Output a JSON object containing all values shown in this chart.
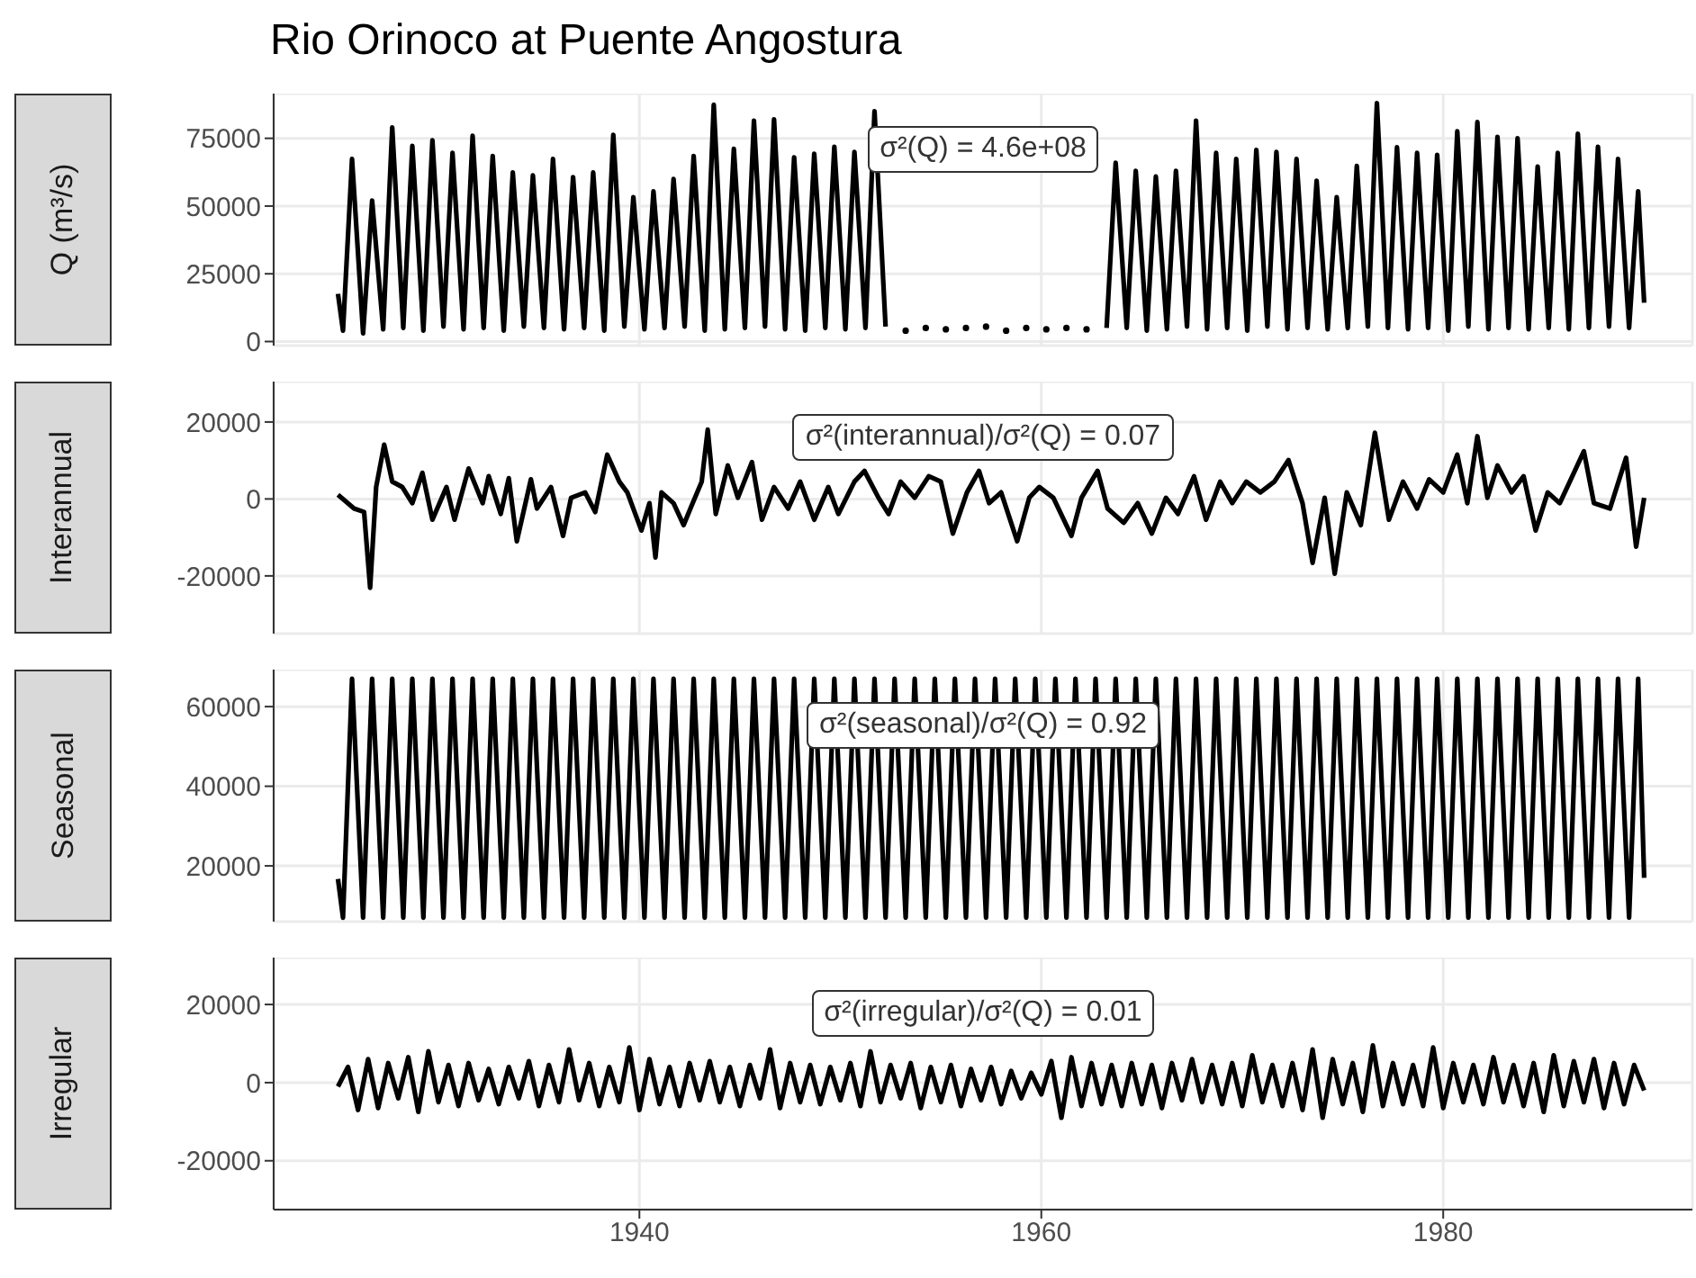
{
  "chart_data": [
    {
      "type": "line",
      "title": "Rio Orinoco at Puente Angostura",
      "ylabel": "Q (m³/s)",
      "annotations": [
        "σ²(Q) = 4.6e+08"
      ],
      "color": "#000000",
      "marker": "none",
      "grid": true,
      "tick_labels": "y",
      "xlim": [
        1921.8,
        1992.4
      ],
      "xticks": [
        1940,
        1960,
        1980
      ],
      "ylim": [
        -1500,
        91500
      ],
      "yticks": [
        0,
        25000,
        50000,
        75000
      ],
      "x": [
        1925,
        1925.25,
        1925.7,
        1926.25,
        1926.7,
        1927.25,
        1927.7,
        1928.25,
        1928.7,
        1929.25,
        1929.7,
        1930.25,
        1930.7,
        1931.25,
        1931.7,
        1932.25,
        1932.7,
        1933.25,
        1933.7,
        1934.25,
        1934.7,
        1935.25,
        1935.7,
        1936.25,
        1936.7,
        1937.25,
        1937.7,
        1938.25,
        1938.7,
        1939.25,
        1939.7,
        1940.25,
        1940.7,
        1941.25,
        1941.7,
        1942.25,
        1942.7,
        1943.25,
        1943.7,
        1944.25,
        1944.7,
        1945.25,
        1945.7,
        1946.25,
        1946.7,
        1947.25,
        1947.7,
        1948.25,
        1948.7,
        1949.25,
        1949.7,
        1950.25,
        1950.7,
        1951.25,
        1951.7,
        1952.25,
        1952.7,
        1953.25,
        1953.7,
        1954.25,
        1954.7,
        1955.25,
        1955.7,
        1956.25,
        1956.7,
        1957.25,
        1957.7,
        1958.25,
        1958.7,
        1959.25,
        1959.7,
        1960.25,
        1960.7,
        1961.25,
        1961.7,
        1962.25,
        1962.7,
        1963.25,
        1963.7,
        1964.25,
        1964.7,
        1965.25,
        1965.7,
        1966.25,
        1966.7,
        1967.25,
        1967.7,
        1968.25,
        1968.7,
        1969.25,
        1969.7,
        1970.25,
        1970.7,
        1971.25,
        1971.7,
        1972.25,
        1972.7,
        1973.25,
        1973.7,
        1974.25,
        1974.7,
        1975.25,
        1975.7,
        1976.25,
        1976.7,
        1977.25,
        1977.7,
        1978.25,
        1978.7,
        1979.25,
        1979.7,
        1980.25,
        1980.7,
        1981.25,
        1981.7,
        1982.25,
        1982.7,
        1983.25,
        1983.7,
        1984.25,
        1984.7,
        1985.25,
        1985.7,
        1986.25,
        1986.7,
        1987.25,
        1987.7,
        1988.25,
        1988.7,
        1989.25,
        1989.7,
        1990
      ],
      "values": [
        17600,
        4000,
        67400,
        3000,
        52000,
        4500,
        79000,
        5000,
        72200,
        4000,
        74300,
        5500,
        69600,
        4500,
        75900,
        5000,
        68500,
        4000,
        62400,
        5500,
        61300,
        5000,
        67400,
        4500,
        60700,
        5000,
        62400,
        4000,
        76300,
        5500,
        53300,
        4500,
        55400,
        5000,
        60000,
        5500,
        68500,
        4000,
        87400,
        4500,
        71100,
        5000,
        81500,
        5500,
        82000,
        4500,
        68000,
        4000,
        69300,
        5000,
        71900,
        4500,
        70000,
        5000,
        85000,
        5500,
        null,
        4000,
        null,
        5000,
        null,
        4500,
        null,
        5000,
        null,
        5500,
        null,
        4000,
        null,
        5000,
        null,
        4500,
        null,
        5000,
        null,
        4500,
        null,
        5000,
        66000,
        5000,
        63000,
        4000,
        60900,
        4500,
        63000,
        5500,
        81500,
        4500,
        69600,
        5000,
        67400,
        4000,
        70700,
        5500,
        70000,
        4500,
        67400,
        5000,
        59300,
        4500,
        53300,
        5000,
        64800,
        5500,
        88000,
        5000,
        71700,
        4500,
        69600,
        5000,
        68900,
        4000,
        77600,
        5500,
        81000,
        4500,
        75500,
        5000,
        75000,
        4500,
        64600,
        5000,
        69600,
        4500,
        76700,
        5000,
        71900,
        5500,
        67400,
        5000,
        55400,
        14300
      ]
    },
    {
      "type": "line",
      "ylabel": "Interannual",
      "annotations": [
        "σ²(interannual)/σ²(Q) = 0.07"
      ],
      "color": "#000000",
      "marker": "none",
      "grid": true,
      "tick_labels": "y",
      "xlim": [
        1921.8,
        1992.4
      ],
      "xticks": [
        1940,
        1960,
        1980
      ],
      "ylim": [
        -35000,
        30500
      ],
      "yticks": [
        -20000,
        0,
        20000
      ],
      "x": [
        1925.0,
        1925.8,
        1926.3,
        1926.6,
        1926.9,
        1927.3,
        1927.7,
        1928.2,
        1928.7,
        1929.2,
        1929.7,
        1930.4,
        1930.8,
        1931.5,
        1932.2,
        1932.5,
        1933.1,
        1933.5,
        1933.9,
        1934.6,
        1934.9,
        1935.6,
        1936.2,
        1936.6,
        1937.3,
        1937.8,
        1938.4,
        1939.0,
        1939.4,
        1940.1,
        1940.5,
        1940.8,
        1941.1,
        1941.7,
        1942.2,
        1942.6,
        1943.1,
        1943.4,
        1943.8,
        1944.4,
        1944.9,
        1945.6,
        1946.1,
        1946.7,
        1947.4,
        1948.0,
        1948.7,
        1949.4,
        1949.9,
        1950.7,
        1951.2,
        1951.9,
        1952.4,
        1953.0,
        1953.7,
        1954.4,
        1955.0,
        1955.6,
        1956.3,
        1956.9,
        1957.4,
        1958.0,
        1958.8,
        1959.4,
        1959.9,
        1960.6,
        1961.5,
        1962.0,
        1962.8,
        1963.3,
        1964.1,
        1964.8,
        1965.5,
        1966.2,
        1966.8,
        1967.6,
        1968.2,
        1968.9,
        1969.5,
        1970.2,
        1970.9,
        1971.6,
        1972.3,
        1973.0,
        1973.5,
        1974.1,
        1974.6,
        1975.2,
        1975.9,
        1976.6,
        1977.3,
        1978.0,
        1978.7,
        1979.3,
        1980.0,
        1980.7,
        1981.2,
        1981.7,
        1982.2,
        1982.7,
        1983.4,
        1984.0,
        1984.6,
        1985.2,
        1985.8,
        1986.3,
        1987.0,
        1987.5,
        1988.3,
        1989.1,
        1989.6,
        1990.0
      ],
      "values": [
        1100,
        -2500,
        -3400,
        -23100,
        3100,
        14100,
        4500,
        3100,
        -1100,
        6800,
        -5400,
        3100,
        -5400,
        7900,
        -1100,
        5900,
        -3900,
        5400,
        -11000,
        5100,
        -2500,
        3100,
        -9600,
        300,
        1700,
        -3400,
        11500,
        4500,
        1700,
        -8200,
        -1100,
        -15200,
        1700,
        -1100,
        -6800,
        -1700,
        4500,
        18000,
        -3900,
        8700,
        300,
        9600,
        -5400,
        3100,
        -2500,
        4500,
        -5400,
        3100,
        -3900,
        4500,
        7300,
        300,
        -3900,
        4500,
        300,
        5900,
        4500,
        -9000,
        1700,
        7300,
        -1100,
        1700,
        -11000,
        300,
        3100,
        300,
        -9600,
        300,
        7300,
        -2500,
        -6200,
        -1100,
        -9000,
        300,
        -3900,
        5900,
        -5400,
        4500,
        -1100,
        4500,
        1700,
        4500,
        10100,
        -1100,
        -16600,
        300,
        -19400,
        1700,
        -6800,
        17200,
        -5400,
        4500,
        -2500,
        5100,
        1700,
        11500,
        -1100,
        16300,
        300,
        8700,
        1700,
        5900,
        -8200,
        1700,
        -1100,
        4500,
        12400,
        -1100,
        -2500,
        10700,
        -12400,
        300
      ]
    },
    {
      "type": "line",
      "ylabel": "Seasonal",
      "annotations": [
        "σ²(seasonal)/σ²(Q) = 0.92"
      ],
      "color": "#000000",
      "marker": "none",
      "grid": true,
      "tick_labels": "y",
      "xlim": [
        1921.8,
        1992.4
      ],
      "xticks": [
        1940,
        1960,
        1980
      ],
      "ylim": [
        6000,
        69300
      ],
      "yticks": [
        20000,
        40000,
        60000
      ],
      "x": [
        1925,
        1925.25,
        1925.7,
        1926.25,
        1926.7,
        1927.25,
        1927.7,
        1928.25,
        1928.7,
        1929.25,
        1929.7,
        1930.25,
        1930.7,
        1931.25,
        1931.7,
        1932.25,
        1932.7,
        1933.25,
        1933.7,
        1934.25,
        1934.7,
        1935.25,
        1935.7,
        1936.25,
        1936.7,
        1937.25,
        1937.7,
        1938.25,
        1938.7,
        1939.25,
        1939.7,
        1940.25,
        1940.7,
        1941.25,
        1941.7,
        1942.25,
        1942.7,
        1943.25,
        1943.7,
        1944.25,
        1944.7,
        1945.25,
        1945.7,
        1946.25,
        1946.7,
        1947.25,
        1947.7,
        1948.25,
        1948.7,
        1949.25,
        1949.7,
        1950.25,
        1950.7,
        1951.25,
        1951.7,
        1952.25,
        1952.7,
        1953.25,
        1953.7,
        1954.25,
        1954.7,
        1955.25,
        1955.7,
        1956.25,
        1956.7,
        1957.25,
        1957.7,
        1958.25,
        1958.7,
        1959.25,
        1959.7,
        1960.25,
        1960.7,
        1961.25,
        1961.7,
        1962.25,
        1962.7,
        1963.25,
        1963.7,
        1964.25,
        1964.7,
        1965.25,
        1965.7,
        1966.25,
        1966.7,
        1967.25,
        1967.7,
        1968.25,
        1968.7,
        1969.25,
        1969.7,
        1970.25,
        1970.7,
        1971.25,
        1971.7,
        1972.25,
        1972.7,
        1973.25,
        1973.7,
        1974.25,
        1974.7,
        1975.25,
        1975.7,
        1976.25,
        1976.7,
        1977.25,
        1977.7,
        1978.25,
        1978.7,
        1979.25,
        1979.7,
        1980.25,
        1980.7,
        1981.25,
        1981.7,
        1982.25,
        1982.7,
        1983.25,
        1983.7,
        1984.25,
        1984.7,
        1985.25,
        1985.7,
        1986.25,
        1986.7,
        1987.25,
        1987.7,
        1988.25,
        1988.7,
        1989.25,
        1989.7,
        1990
      ],
      "values": [
        16700,
        7000,
        67000,
        7000,
        67000,
        7000,
        67000,
        7000,
        67000,
        7000,
        67000,
        7000,
        67000,
        7000,
        67000,
        7000,
        67000,
        7000,
        67000,
        7000,
        67000,
        7000,
        67000,
        7000,
        67000,
        7000,
        67000,
        7000,
        67000,
        7000,
        67000,
        7000,
        67000,
        7000,
        67000,
        7000,
        67000,
        7000,
        67000,
        7000,
        67000,
        7000,
        67000,
        7000,
        67000,
        7000,
        67000,
        7000,
        67000,
        7000,
        67000,
        7000,
        67000,
        7000,
        67000,
        7000,
        67000,
        7000,
        67000,
        7000,
        67000,
        7000,
        67000,
        7000,
        67000,
        7000,
        67000,
        7000,
        67000,
        7000,
        67000,
        7000,
        67000,
        7000,
        67000,
        7000,
        67000,
        7000,
        67000,
        7000,
        67000,
        7000,
        67000,
        7000,
        67000,
        7000,
        67000,
        7000,
        67000,
        7000,
        67000,
        7000,
        67000,
        7000,
        67000,
        7000,
        67000,
        7000,
        67000,
        7000,
        67000,
        7000,
        67000,
        7000,
        67000,
        7000,
        67000,
        7000,
        67000,
        7000,
        67000,
        7000,
        67000,
        7000,
        67000,
        7000,
        67000,
        7000,
        67000,
        7000,
        67000,
        7000,
        67000,
        7000,
        67000,
        7000,
        67000,
        7000,
        67000,
        7000,
        67000,
        17000
      ]
    },
    {
      "type": "line",
      "ylabel": "Irregular",
      "annotations": [
        "σ²(irregular)/σ²(Q) = 0.01"
      ],
      "color": "#000000",
      "marker": "none",
      "grid": true,
      "xlim": [
        1921.8,
        1992.4
      ],
      "xticks": [
        1940,
        1960,
        1980
      ],
      "ylim": [
        -32500,
        32000
      ],
      "yticks": [
        -20000,
        0,
        20000
      ],
      "x": [
        1925,
        1925.5,
        1926,
        1926.5,
        1927,
        1927.5,
        1928,
        1928.5,
        1929,
        1929.5,
        1930,
        1930.5,
        1931,
        1931.5,
        1932,
        1932.5,
        1933,
        1933.5,
        1934,
        1934.5,
        1935,
        1935.5,
        1936,
        1936.5,
        1937,
        1937.5,
        1938,
        1938.5,
        1939,
        1939.5,
        1940,
        1940.5,
        1941,
        1941.5,
        1942,
        1942.5,
        1943,
        1943.5,
        1944,
        1944.5,
        1945,
        1945.5,
        1946,
        1946.5,
        1947,
        1947.5,
        1948,
        1948.5,
        1949,
        1949.5,
        1950,
        1950.5,
        1951,
        1951.5,
        1952,
        1952.5,
        1953,
        1953.5,
        1954,
        1954.5,
        1955,
        1955.5,
        1956,
        1956.5,
        1957,
        1957.5,
        1958,
        1958.5,
        1959,
        1959.5,
        1960,
        1960.5,
        1961,
        1961.5,
        1962,
        1962.5,
        1963,
        1963.5,
        1964,
        1964.5,
        1965,
        1965.5,
        1966,
        1966.5,
        1967,
        1967.5,
        1968,
        1968.5,
        1969,
        1969.5,
        1970,
        1970.5,
        1971,
        1971.5,
        1972,
        1972.5,
        1973,
        1973.5,
        1974,
        1974.5,
        1975,
        1975.5,
        1976,
        1976.5,
        1977,
        1977.5,
        1978,
        1978.5,
        1979,
        1979.5,
        1980,
        1980.5,
        1981,
        1981.5,
        1982,
        1982.5,
        1983,
        1983.5,
        1984,
        1984.5,
        1985,
        1985.5,
        1986,
        1986.5,
        1987,
        1987.5,
        1988,
        1988.5,
        1989,
        1989.5,
        1990
      ],
      "values": [
        -1000,
        4000,
        -7000,
        6000,
        -6500,
        5000,
        -4000,
        6500,
        -7500,
        8000,
        -5000,
        4500,
        -6000,
        5000,
        -4500,
        3500,
        -5500,
        4000,
        -4000,
        5500,
        -6000,
        4500,
        -5000,
        8500,
        -4500,
        5000,
        -6000,
        4000,
        -5000,
        9000,
        -7000,
        6000,
        -5500,
        4000,
        -6000,
        5000,
        -4500,
        5500,
        -5000,
        4000,
        -6000,
        4500,
        -4000,
        8500,
        -6500,
        5000,
        -5000,
        4500,
        -5500,
        4000,
        -4500,
        5000,
        -6000,
        8000,
        -5000,
        4500,
        -4000,
        5000,
        -6500,
        4000,
        -5000,
        4500,
        -6000,
        3500,
        -4500,
        4000,
        -5500,
        3000,
        -4000,
        2500,
        -3000,
        5500,
        -9000,
        6500,
        -6000,
        5000,
        -5500,
        4500,
        -6000,
        5000,
        -5500,
        4500,
        -6500,
        5000,
        -4500,
        6000,
        -5000,
        4500,
        -5500,
        5000,
        -6000,
        7000,
        -5000,
        4500,
        -6000,
        5000,
        -7000,
        8500,
        -9000,
        6000,
        -5500,
        5000,
        -7500,
        9500,
        -6000,
        5000,
        -5500,
        4500,
        -6000,
        9000,
        -6500,
        5000,
        -5000,
        4500,
        -5500,
        6500,
        -5000,
        4500,
        -6000,
        5000,
        -7500,
        7000,
        -6000,
        5500,
        -5000,
        6000,
        -6500,
        5000,
        -5500,
        4500,
        -2000
      ]
    }
  ]
}
